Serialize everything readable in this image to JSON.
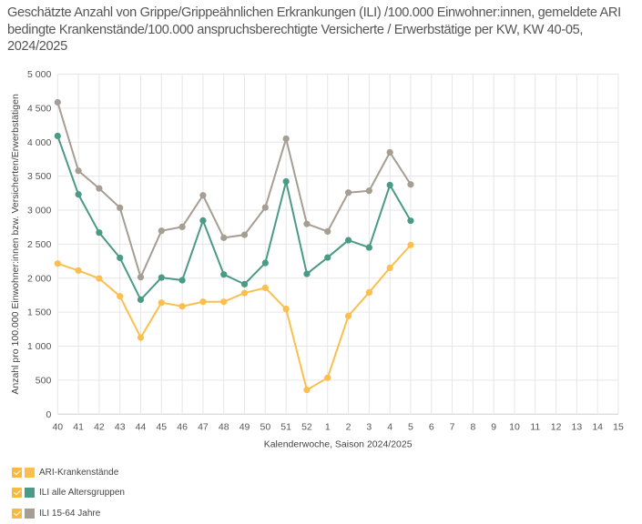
{
  "title": "Geschätzte Anzahl von Grippe/Grippeähnlichen Erkrankungen (ILI) /100.000 Einwohner:innen, gemeldete ARI bedingte Krankenstände/100.000 anspruchsberechtigte Versicherte / Erwerbstätige per KW, KW 40-05, 2024/2025",
  "chart_data": {
    "type": "line",
    "title": "Geschätzte Anzahl von Grippe/Grippeähnlichen Erkrankungen (ILI) /100.000 Einwohner:innen, gemeldete ARI bedingte Krankenstände/100.000 anspruchsberechtigte Versicherte / Erwerbstätige per KW, KW 40-05, 2024/2025",
    "xlabel": "Kalenderwoche, Saison 2024/2025",
    "ylabel": "Anzahl pro 100.000 Einwohner:innen bzw. Versicherten/Erwerbstätigen",
    "x_ticks": [
      "40",
      "41",
      "42",
      "43",
      "44",
      "45",
      "46",
      "47",
      "48",
      "49",
      "50",
      "51",
      "52",
      "1",
      "2",
      "3",
      "4",
      "5",
      "6",
      "7",
      "8",
      "9",
      "10",
      "11",
      "12",
      "13",
      "14",
      "15"
    ],
    "y_ticks": [
      "0",
      "500",
      "1 000",
      "1 500",
      "2 000",
      "2 500",
      "3 000",
      "3 500",
      "4 000",
      "4 500",
      "5 000"
    ],
    "ylim": [
      0,
      5000
    ],
    "grid": true,
    "legend_position": "bottom-left",
    "x": [
      "40",
      "41",
      "42",
      "43",
      "44",
      "45",
      "46",
      "47",
      "48",
      "49",
      "50",
      "51",
      "52",
      "1",
      "2",
      "3",
      "4",
      "5"
    ],
    "series": [
      {
        "name": "ARI-Krankenstände",
        "color": "#fbbf4f",
        "values": [
          2215,
          2112,
          1996,
          1734,
          1127,
          1640,
          1586,
          1653,
          1653,
          1782,
          1858,
          1547,
          357,
          535,
          1444,
          1791,
          2152,
          2487
        ]
      },
      {
        "name": "ILI alle Altersgruppen",
        "color": "#4b9a86",
        "values": [
          4091,
          3231,
          2670,
          2299,
          1684,
          2009,
          1970,
          2848,
          2055,
          1912,
          2224,
          3422,
          2063,
          2304,
          2558,
          2451,
          3369,
          2844
        ]
      },
      {
        "name": "ILI 15-64 Jahre",
        "color": "#a69d93",
        "values": [
          4586,
          3579,
          3320,
          3035,
          2015,
          2697,
          2754,
          3218,
          2594,
          2638,
          3039,
          4051,
          2798,
          2687,
          3258,
          3285,
          3850,
          3378
        ]
      }
    ]
  },
  "legend": {
    "items": [
      {
        "label": "ARI-Krankenstände",
        "checked": true
      },
      {
        "label": "ILI alle Altersgruppen",
        "checked": true
      },
      {
        "label": "ILI 15-64 Jahre",
        "checked": true
      }
    ]
  }
}
